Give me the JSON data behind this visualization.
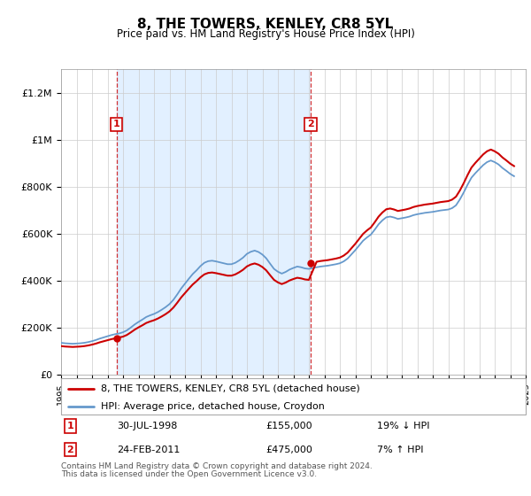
{
  "title": "8, THE TOWERS, KENLEY, CR8 5YL",
  "subtitle": "Price paid vs. HM Land Registry's House Price Index (HPI)",
  "sale1_date": "30-JUL-1998",
  "sale1_price": 155000,
  "sale1_label": "19% ↓ HPI",
  "sale2_date": "24-FEB-2011",
  "sale2_price": 475000,
  "sale2_label": "7% ↑ HPI",
  "legend_line1": "8, THE TOWERS, KENLEY, CR8 5YL (detached house)",
  "legend_line2": "HPI: Average price, detached house, Croydon",
  "footnote1": "Contains HM Land Registry data © Crown copyright and database right 2024.",
  "footnote2": "This data is licensed under the Open Government Licence v3.0.",
  "sale_color": "#cc0000",
  "hpi_color": "#6699cc",
  "shade_color": "#ddeeff",
  "ylim_max": 1300000,
  "hpi_data": {
    "years": [
      1995.0,
      1995.25,
      1995.5,
      1995.75,
      1996.0,
      1996.25,
      1996.5,
      1996.75,
      1997.0,
      1997.25,
      1997.5,
      1997.75,
      1998.0,
      1998.25,
      1998.5,
      1998.75,
      1999.0,
      1999.25,
      1999.5,
      1999.75,
      2000.0,
      2000.25,
      2000.5,
      2000.75,
      2001.0,
      2001.25,
      2001.5,
      2001.75,
      2002.0,
      2002.25,
      2002.5,
      2002.75,
      2003.0,
      2003.25,
      2003.5,
      2003.75,
      2004.0,
      2004.25,
      2004.5,
      2004.75,
      2005.0,
      2005.25,
      2005.5,
      2005.75,
      2006.0,
      2006.25,
      2006.5,
      2006.75,
      2007.0,
      2007.25,
      2007.5,
      2007.75,
      2008.0,
      2008.25,
      2008.5,
      2008.75,
      2009.0,
      2009.25,
      2009.5,
      2009.75,
      2010.0,
      2010.25,
      2010.5,
      2010.75,
      2011.0,
      2011.25,
      2011.5,
      2011.75,
      2012.0,
      2012.25,
      2012.5,
      2012.75,
      2013.0,
      2013.25,
      2013.5,
      2013.75,
      2014.0,
      2014.25,
      2014.5,
      2014.75,
      2015.0,
      2015.25,
      2015.5,
      2015.75,
      2016.0,
      2016.25,
      2016.5,
      2016.75,
      2017.0,
      2017.25,
      2017.5,
      2017.75,
      2018.0,
      2018.25,
      2018.5,
      2018.75,
      2019.0,
      2019.25,
      2019.5,
      2019.75,
      2020.0,
      2020.25,
      2020.5,
      2020.75,
      2021.0,
      2021.25,
      2021.5,
      2021.75,
      2022.0,
      2022.25,
      2022.5,
      2022.75,
      2023.0,
      2023.25,
      2023.5,
      2023.75,
      2024.0,
      2024.25
    ],
    "values": [
      135000,
      133000,
      132000,
      131000,
      132000,
      133000,
      135000,
      138000,
      142000,
      147000,
      153000,
      158000,
      163000,
      168000,
      172000,
      175000,
      180000,
      188000,
      200000,
      213000,
      224000,
      234000,
      245000,
      252000,
      258000,
      266000,
      276000,
      287000,
      300000,
      318000,
      341000,
      366000,
      387000,
      408000,
      428000,
      444000,
      462000,
      476000,
      483000,
      485000,
      482000,
      478000,
      474000,
      470000,
      470000,
      476000,
      486000,
      498000,
      514000,
      523000,
      528000,
      522000,
      511000,
      495000,
      472000,
      450000,
      438000,
      430000,
      437000,
      447000,
      454000,
      460000,
      457000,
      452000,
      450000,
      454000,
      457000,
      460000,
      462000,
      464000,
      467000,
      470000,
      474000,
      482000,
      494000,
      512000,
      530000,
      550000,
      570000,
      584000,
      596000,
      617000,
      640000,
      657000,
      670000,
      673000,
      669000,
      663000,
      666000,
      669000,
      673000,
      679000,
      683000,
      686000,
      689000,
      691000,
      693000,
      696000,
      699000,
      701000,
      703000,
      709000,
      721000,
      746000,
      776000,
      809000,
      839000,
      858000,
      875000,
      892000,
      905000,
      912000,
      905000,
      895000,
      880000,
      868000,
      855000,
      845000
    ]
  },
  "sale1_year": 1998.58,
  "sale2_year": 2011.12,
  "x_ticks": [
    1995,
    1996,
    1997,
    1998,
    1999,
    2000,
    2001,
    2002,
    2003,
    2004,
    2005,
    2006,
    2007,
    2008,
    2009,
    2010,
    2011,
    2012,
    2013,
    2014,
    2015,
    2016,
    2017,
    2018,
    2019,
    2020,
    2021,
    2022,
    2023,
    2024,
    2025
  ],
  "y_ticks": [
    0,
    200000,
    400000,
    600000,
    800000,
    1000000,
    1200000
  ],
  "y_tick_labels": [
    "£0",
    "£200K",
    "£400K",
    "£600K",
    "£800K",
    "£1M",
    "£1.2M"
  ]
}
